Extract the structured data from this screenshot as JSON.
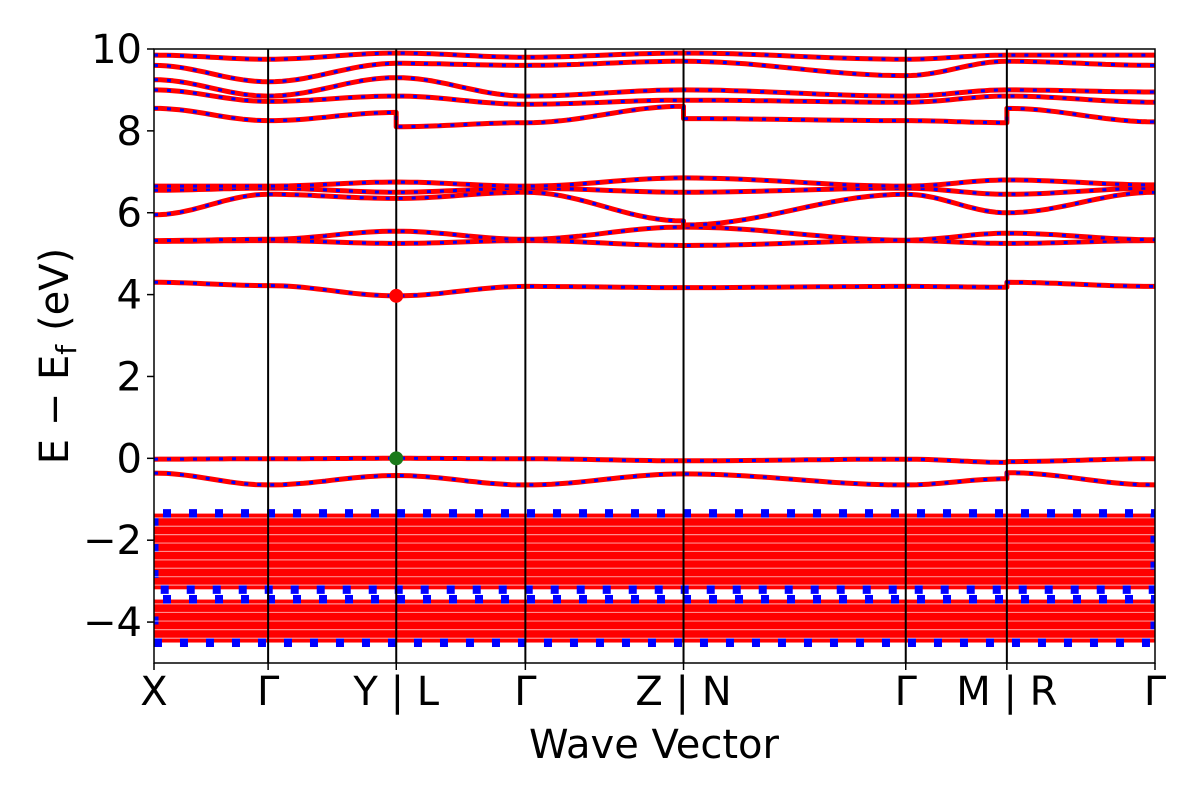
{
  "chart_data": {
    "type": "line",
    "title": "",
    "xlabel": "Wave Vector",
    "ylabel_parts": {
      "main": "E − E",
      "sub": "f",
      "unit": "(eV)"
    },
    "ylim": [
      -5,
      10
    ],
    "yticks": [
      {
        "value": -4,
        "label": "−4"
      },
      {
        "value": -2,
        "label": "−2"
      },
      {
        "value": 0,
        "label": "0"
      },
      {
        "value": 2,
        "label": "2"
      },
      {
        "value": 4,
        "label": "4"
      },
      {
        "value": 6,
        "label": "6"
      },
      {
        "value": 8,
        "label": "8"
      },
      {
        "value": 10,
        "label": "10"
      }
    ],
    "kpoints": [
      {
        "label": "X",
        "k": 0.0
      },
      {
        "label": "Γ",
        "k": 0.114
      },
      {
        "label": "Y | L",
        "k": 0.242
      },
      {
        "label": "Γ",
        "k": 0.371
      },
      {
        "label": "Z | N",
        "k": 0.529
      },
      {
        "label": "Γ",
        "k": 0.751
      },
      {
        "label": "M | R",
        "k": 0.852
      },
      {
        "label": "Γ",
        "k": 1.0
      }
    ],
    "colors": {
      "band": "#ff0000",
      "band_dash": "#0000ff",
      "vbm_marker": "#1a7a1a",
      "cbm_marker": "#ff0000"
    },
    "markers": [
      {
        "name": "CBM",
        "k": 0.242,
        "energy": 3.97
      },
      {
        "name": "VBM",
        "k": 0.242,
        "energy": 0.0
      }
    ],
    "bands": [
      {
        "knots": [
          [
            0,
            -0.36
          ],
          [
            0.114,
            -0.65
          ],
          [
            0.242,
            -0.42
          ],
          [
            0.371,
            -0.65
          ],
          [
            0.529,
            -0.38
          ],
          [
            0.751,
            -0.65
          ],
          [
            0.852,
            -0.5
          ],
          [
            0.852,
            -0.35
          ],
          [
            1.0,
            -0.65
          ]
        ]
      },
      {
        "knots": [
          [
            0,
            -0.02
          ],
          [
            0.114,
            -0.01
          ],
          [
            0.242,
            0.0
          ],
          [
            0.371,
            -0.01
          ],
          [
            0.529,
            -0.06
          ],
          [
            0.751,
            -0.02
          ],
          [
            0.852,
            -0.1
          ],
          [
            0.852,
            -0.08
          ],
          [
            1.0,
            -0.01
          ]
        ]
      },
      {
        "knots": [
          [
            0,
            4.3
          ],
          [
            0.114,
            4.22
          ],
          [
            0.242,
            3.97
          ],
          [
            0.371,
            4.2
          ],
          [
            0.529,
            4.17
          ],
          [
            0.751,
            4.2
          ],
          [
            0.852,
            4.18
          ],
          [
            0.852,
            4.3
          ],
          [
            1.0,
            4.2
          ]
        ]
      },
      {
        "knots": [
          [
            0,
            5.3
          ],
          [
            0.114,
            5.32
          ],
          [
            0.242,
            5.25
          ],
          [
            0.371,
            5.32
          ],
          [
            0.529,
            5.2
          ],
          [
            0.751,
            5.32
          ],
          [
            0.852,
            5.25
          ],
          [
            1.0,
            5.32
          ]
        ]
      },
      {
        "knots": [
          [
            0,
            5.32
          ],
          [
            0.114,
            5.35
          ],
          [
            0.242,
            5.55
          ],
          [
            0.371,
            5.35
          ],
          [
            0.529,
            5.65
          ],
          [
            0.751,
            5.33
          ],
          [
            0.852,
            5.5
          ],
          [
            1.0,
            5.34
          ]
        ]
      },
      {
        "knots": [
          [
            0,
            5.95
          ],
          [
            0.114,
            6.45
          ],
          [
            0.242,
            6.35
          ],
          [
            0.371,
            6.5
          ],
          [
            0.529,
            5.8
          ],
          [
            0.529,
            5.7
          ],
          [
            0.751,
            6.45
          ],
          [
            0.852,
            6.0
          ],
          [
            1.0,
            6.5
          ]
        ]
      },
      {
        "knots": [
          [
            0,
            6.55
          ],
          [
            0.114,
            6.6
          ],
          [
            0.242,
            6.5
          ],
          [
            0.371,
            6.6
          ],
          [
            0.529,
            6.5
          ],
          [
            0.751,
            6.6
          ],
          [
            0.852,
            6.45
          ],
          [
            1.0,
            6.6
          ]
        ]
      },
      {
        "knots": [
          [
            0,
            6.65
          ],
          [
            0.114,
            6.65
          ],
          [
            0.242,
            6.75
          ],
          [
            0.371,
            6.65
          ],
          [
            0.529,
            6.85
          ],
          [
            0.751,
            6.65
          ],
          [
            0.852,
            6.8
          ],
          [
            1.0,
            6.68
          ]
        ]
      },
      {
        "knots": [
          [
            0,
            8.55
          ],
          [
            0.114,
            8.25
          ],
          [
            0.242,
            8.45
          ],
          [
            0.242,
            8.1
          ],
          [
            0.371,
            8.2
          ],
          [
            0.529,
            8.6
          ],
          [
            0.529,
            8.3
          ],
          [
            0.751,
            8.25
          ],
          [
            0.852,
            8.2
          ],
          [
            0.852,
            8.55
          ],
          [
            1.0,
            8.22
          ]
        ]
      },
      {
        "knots": [
          [
            0,
            9.0
          ],
          [
            0.114,
            8.72
          ],
          [
            0.242,
            8.85
          ],
          [
            0.371,
            8.65
          ],
          [
            0.529,
            8.75
          ],
          [
            0.751,
            8.7
          ],
          [
            0.852,
            8.85
          ],
          [
            1.0,
            8.7
          ]
        ]
      },
      {
        "knots": [
          [
            0,
            9.25
          ],
          [
            0.114,
            8.85
          ],
          [
            0.242,
            9.3
          ],
          [
            0.371,
            8.85
          ],
          [
            0.529,
            9.0
          ],
          [
            0.751,
            8.85
          ],
          [
            0.852,
            9.0
          ],
          [
            1.0,
            8.95
          ]
        ]
      },
      {
        "knots": [
          [
            0,
            9.6
          ],
          [
            0.114,
            9.2
          ],
          [
            0.242,
            9.65
          ],
          [
            0.371,
            9.6
          ],
          [
            0.529,
            9.7
          ],
          [
            0.751,
            9.35
          ],
          [
            0.852,
            9.7
          ],
          [
            1.0,
            9.6
          ]
        ]
      },
      {
        "knots": [
          [
            0,
            9.85
          ],
          [
            0.114,
            9.75
          ],
          [
            0.242,
            9.9
          ],
          [
            0.371,
            9.8
          ],
          [
            0.529,
            9.9
          ],
          [
            0.751,
            9.75
          ],
          [
            0.852,
            9.85
          ],
          [
            1.0,
            9.85
          ]
        ]
      }
    ],
    "band_blocks": [
      {
        "from": -3.2,
        "to": -1.35,
        "lines": 9
      },
      {
        "from": -4.5,
        "to": -3.45,
        "lines": 5
      }
    ]
  }
}
